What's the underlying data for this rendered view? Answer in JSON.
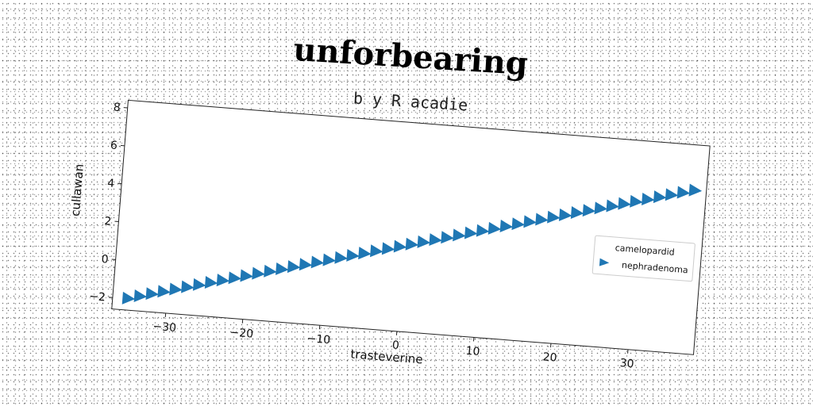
{
  "chart_data": {
    "type": "scatter",
    "title": "unforbearing",
    "subtitle": "b y R acadie",
    "xlabel": "trasteverine",
    "ylabel": "cullawan",
    "xlim": [
      -37,
      38.5
    ],
    "ylim": [
      -2.6,
      8.4
    ],
    "xticks": [
      -30,
      -20,
      -10,
      0,
      10,
      20,
      30
    ],
    "yticks": [
      -2,
      0,
      2,
      4,
      6,
      8
    ],
    "xtick_labels": [
      "−30",
      "−20",
      "−10",
      "0",
      "10",
      "20",
      "30"
    ],
    "ytick_labels": [
      "−2",
      "0",
      "2",
      "4",
      "6",
      "8"
    ],
    "grid": false,
    "legend_position": "center-right",
    "series": [
      {
        "name": "camelopardid",
        "marker": "none",
        "color": "#1f77b4",
        "x": [],
        "y": []
      },
      {
        "name": "nephradenoma",
        "marker": "triangle-right",
        "color": "#1f77b4",
        "x_start": -35,
        "x_end": 37,
        "x_step": 1.5,
        "slope": 0.111,
        "intercept": 1.9
      }
    ]
  }
}
